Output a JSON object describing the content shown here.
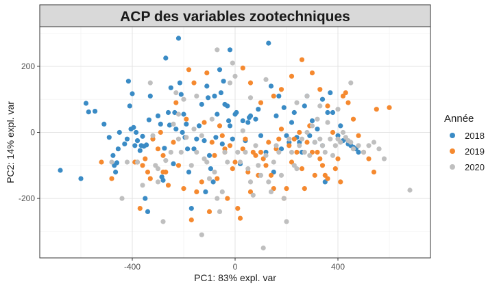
{
  "chart_data": {
    "type": "scatter",
    "title": "ACP des variables zootechniques",
    "xlabel": "PC1: 83% expl. var",
    "ylabel": "PC2: 14% expl. var",
    "xlim": [
      -760,
      760
    ],
    "ylim": [
      -380,
      320
    ],
    "xticks": [
      -400,
      0,
      400
    ],
    "yticks": [
      -200,
      0,
      200
    ],
    "grid": true,
    "legend": {
      "title": "Année",
      "position": "right"
    },
    "series": [
      {
        "name": "2018",
        "color": "#3A8BC5",
        "points": [
          [
            -680,
            -115
          ],
          [
            -600,
            -140
          ],
          [
            -580,
            88
          ],
          [
            -570,
            62
          ],
          [
            -545,
            64
          ],
          [
            -510,
            25
          ],
          [
            -490,
            -15
          ],
          [
            -475,
            -70
          ],
          [
            -470,
            -100
          ],
          [
            -465,
            -120
          ],
          [
            -460,
            -92
          ],
          [
            -455,
            -50
          ],
          [
            -450,
            0
          ],
          [
            -430,
            -35
          ],
          [
            -420,
            -20
          ],
          [
            -415,
            155
          ],
          [
            -410,
            80
          ],
          [
            -405,
            10
          ],
          [
            -400,
            117
          ],
          [
            -395,
            15
          ],
          [
            -390,
            -40
          ],
          [
            -385,
            0
          ],
          [
            -380,
            -25
          ],
          [
            -370,
            -55
          ],
          [
            -365,
            -40
          ],
          [
            -360,
            -12
          ],
          [
            -355,
            -42
          ],
          [
            -350,
            -200
          ],
          [
            -345,
            -38
          ],
          [
            -340,
            -240
          ],
          [
            -335,
            38
          ],
          [
            -330,
            110
          ],
          [
            -320,
            -20
          ],
          [
            -300,
            50
          ],
          [
            -290,
            25
          ],
          [
            -285,
            -135
          ],
          [
            -280,
            -145
          ],
          [
            -275,
            -48
          ],
          [
            -270,
            225
          ],
          [
            -260,
            60
          ],
          [
            -255,
            22
          ],
          [
            -250,
            135
          ],
          [
            -240,
            -95
          ],
          [
            -235,
            60
          ],
          [
            -230,
            10
          ],
          [
            -220,
            285
          ],
          [
            -215,
            150
          ],
          [
            -210,
            115
          ],
          [
            -205,
            0
          ],
          [
            -200,
            55
          ],
          [
            -195,
            -15
          ],
          [
            -190,
            25
          ],
          [
            -185,
            -50
          ],
          [
            -180,
            -120
          ],
          [
            -170,
            -230
          ],
          [
            -160,
            -50
          ],
          [
            -150,
            -20
          ],
          [
            -140,
            20
          ],
          [
            -130,
            85
          ],
          [
            -120,
            -25
          ],
          [
            -115,
            -180
          ],
          [
            -110,
            140
          ],
          [
            -105,
            105
          ],
          [
            -100,
            -70
          ],
          [
            -95,
            -110
          ],
          [
            -85,
            -150
          ],
          [
            -80,
            110
          ],
          [
            -75,
            -15
          ],
          [
            -70,
            55
          ],
          [
            -60,
            190
          ],
          [
            -55,
            120
          ],
          [
            -50,
            -35
          ],
          [
            -45,
            155
          ],
          [
            -40,
            85
          ],
          [
            -30,
            80
          ],
          [
            -25,
            35
          ],
          [
            -20,
            250
          ],
          [
            -10,
            -20
          ],
          [
            0,
            55
          ],
          [
            5,
            60
          ],
          [
            20,
            -95
          ],
          [
            30,
            35
          ],
          [
            40,
            -25
          ],
          [
            50,
            30
          ],
          [
            55,
            45
          ],
          [
            60,
            50
          ],
          [
            80,
            40
          ],
          [
            90,
            70
          ],
          [
            100,
            -10
          ],
          [
            120,
            -60
          ],
          [
            130,
            270
          ],
          [
            140,
            140
          ],
          [
            150,
            -120
          ],
          [
            160,
            50
          ],
          [
            170,
            110
          ],
          [
            180,
            -50
          ],
          [
            190,
            75
          ],
          [
            200,
            -10
          ],
          [
            210,
            -30
          ],
          [
            220,
            30
          ],
          [
            230,
            60
          ],
          [
            240,
            -15
          ],
          [
            250,
            -30
          ],
          [
            260,
            -60
          ],
          [
            270,
            80
          ],
          [
            280,
            110
          ],
          [
            290,
            -10
          ],
          [
            300,
            35
          ],
          [
            310,
            -30
          ],
          [
            320,
            10
          ],
          [
            340,
            -40
          ],
          [
            350,
            -150
          ],
          [
            360,
            60
          ],
          [
            380,
            60
          ],
          [
            400,
            -10
          ],
          [
            410,
            20
          ],
          [
            420,
            -25
          ],
          [
            430,
            -20
          ],
          [
            440,
            -35
          ],
          [
            450,
            -40
          ],
          [
            460,
            -45
          ],
          [
            470,
            -50
          ],
          [
            480,
            -60
          ],
          [
            370,
            120
          ],
          [
            340,
            100
          ],
          [
            -20,
            20
          ]
        ]
      },
      {
        "name": "2019",
        "color": "#F5892F",
        "points": [
          [
            -520,
            -90
          ],
          [
            -480,
            -140
          ],
          [
            -390,
            -90
          ],
          [
            -380,
            -90
          ],
          [
            -370,
            -230
          ],
          [
            -360,
            -100
          ],
          [
            -350,
            -80
          ],
          [
            -340,
            -120
          ],
          [
            -330,
            -140
          ],
          [
            -320,
            -20
          ],
          [
            -300,
            -50
          ],
          [
            -290,
            0
          ],
          [
            -280,
            -120
          ],
          [
            -270,
            -120
          ],
          [
            -260,
            -160
          ],
          [
            -240,
            -30
          ],
          [
            -220,
            -100
          ],
          [
            -200,
            -170
          ],
          [
            -190,
            40
          ],
          [
            -180,
            190
          ],
          [
            -170,
            -265
          ],
          [
            -160,
            150
          ],
          [
            -150,
            -180
          ],
          [
            -130,
            -150
          ],
          [
            -120,
            30
          ],
          [
            -110,
            180
          ],
          [
            -100,
            -240
          ],
          [
            -90,
            -30
          ],
          [
            -80,
            -70
          ],
          [
            -70,
            -140
          ],
          [
            -60,
            20
          ],
          [
            -50,
            -10
          ],
          [
            -40,
            -60
          ],
          [
            -30,
            -200
          ],
          [
            -20,
            -40
          ],
          [
            -10,
            -110
          ],
          [
            0,
            -90
          ],
          [
            10,
            -230
          ],
          [
            20,
            -260
          ],
          [
            30,
            -50
          ],
          [
            40,
            -20
          ],
          [
            50,
            -120
          ],
          [
            60,
            -180
          ],
          [
            70,
            -60
          ],
          [
            80,
            -70
          ],
          [
            90,
            -130
          ],
          [
            100,
            -60
          ],
          [
            110,
            -80
          ],
          [
            120,
            -100
          ],
          [
            130,
            -30
          ],
          [
            140,
            -130
          ],
          [
            150,
            -170
          ],
          [
            160,
            -50
          ],
          [
            170,
            -20
          ],
          [
            180,
            10
          ],
          [
            190,
            -200
          ],
          [
            200,
            -170
          ],
          [
            210,
            -40
          ],
          [
            220,
            -90
          ],
          [
            230,
            -20
          ],
          [
            240,
            -60
          ],
          [
            250,
            0
          ],
          [
            260,
            -110
          ],
          [
            270,
            -170
          ],
          [
            280,
            -30
          ],
          [
            290,
            20
          ],
          [
            300,
            -60
          ],
          [
            310,
            -130
          ],
          [
            320,
            -60
          ],
          [
            330,
            -80
          ],
          [
            340,
            -100
          ],
          [
            350,
            -130
          ],
          [
            360,
            -140
          ],
          [
            380,
            0
          ],
          [
            390,
            -110
          ],
          [
            400,
            -80
          ],
          [
            410,
            -150
          ],
          [
            420,
            110
          ],
          [
            430,
            120
          ],
          [
            440,
            90
          ],
          [
            460,
            40
          ],
          [
            480,
            -10
          ],
          [
            500,
            -60
          ],
          [
            520,
            -80
          ],
          [
            540,
            -120
          ],
          [
            550,
            70
          ],
          [
            600,
            75
          ],
          [
            360,
            80
          ],
          [
            330,
            130
          ],
          [
            300,
            180
          ],
          [
            260,
            220
          ],
          [
            220,
            170
          ],
          [
            180,
            130
          ],
          [
            150,
            110
          ],
          [
            100,
            90
          ],
          [
            60,
            150
          ],
          [
            30,
            195
          ],
          [
            -230,
            90
          ],
          [
            -280,
            -70
          ],
          [
            -40,
            -50
          ]
        ]
      },
      {
        "name": "2020",
        "color": "#BFBFBF",
        "points": [
          [
            -480,
            -90
          ],
          [
            -440,
            -200
          ],
          [
            -420,
            -90
          ],
          [
            -380,
            -90
          ],
          [
            -360,
            -160
          ],
          [
            -330,
            150
          ],
          [
            -310,
            -100
          ],
          [
            -300,
            -110
          ],
          [
            -280,
            -270
          ],
          [
            -270,
            -85
          ],
          [
            -250,
            -60
          ],
          [
            -240,
            25
          ],
          [
            -230,
            120
          ],
          [
            -220,
            -20
          ],
          [
            -210,
            -60
          ],
          [
            -200,
            100
          ],
          [
            -190,
            -15
          ],
          [
            -170,
            -100
          ],
          [
            -160,
            10
          ],
          [
            -150,
            -60
          ],
          [
            -130,
            -10
          ],
          [
            -120,
            -80
          ],
          [
            -110,
            -90
          ],
          [
            -100,
            -140
          ],
          [
            -90,
            40
          ],
          [
            -80,
            -120
          ],
          [
            -70,
            -200
          ],
          [
            -60,
            -240
          ],
          [
            -50,
            -180
          ],
          [
            -40,
            -60
          ],
          [
            -30,
            -90
          ],
          [
            -20,
            150
          ],
          [
            -10,
            210
          ],
          [
            10,
            -60
          ],
          [
            20,
            -90
          ],
          [
            30,
            5
          ],
          [
            40,
            -60
          ],
          [
            50,
            -110
          ],
          [
            60,
            -150
          ],
          [
            70,
            -190
          ],
          [
            80,
            -40
          ],
          [
            90,
            -100
          ],
          [
            100,
            -130
          ],
          [
            110,
            -350
          ],
          [
            120,
            -70
          ],
          [
            130,
            -150
          ],
          [
            140,
            -180
          ],
          [
            150,
            -90
          ],
          [
            160,
            -40
          ],
          [
            170,
            -60
          ],
          [
            180,
            -130
          ],
          [
            190,
            -200
          ],
          [
            200,
            -270
          ],
          [
            210,
            -20
          ],
          [
            220,
            -60
          ],
          [
            230,
            -100
          ],
          [
            240,
            -110
          ],
          [
            250,
            -40
          ],
          [
            260,
            -20
          ],
          [
            270,
            -60
          ],
          [
            280,
            0
          ],
          [
            290,
            -70
          ],
          [
            300,
            20
          ],
          [
            310,
            -30
          ],
          [
            320,
            40
          ],
          [
            330,
            -20
          ],
          [
            340,
            -40
          ],
          [
            350,
            -60
          ],
          [
            360,
            30
          ],
          [
            370,
            -20
          ],
          [
            380,
            -70
          ],
          [
            390,
            -40
          ],
          [
            400,
            -20
          ],
          [
            410,
            -30
          ],
          [
            420,
            0
          ],
          [
            430,
            -15
          ],
          [
            440,
            -25
          ],
          [
            450,
            -30
          ],
          [
            460,
            -50
          ],
          [
            480,
            -40
          ],
          [
            500,
            -60
          ],
          [
            520,
            -40
          ],
          [
            540,
            -30
          ],
          [
            560,
            -50
          ],
          [
            580,
            -80
          ],
          [
            680,
            -175
          ],
          [
            -320,
            -10
          ],
          [
            -220,
            55
          ],
          [
            -150,
            110
          ],
          [
            -70,
            250
          ],
          [
            0,
            170
          ],
          [
            60,
            105
          ],
          [
            120,
            160
          ],
          [
            240,
            90
          ],
          [
            280,
            110
          ],
          [
            330,
            80
          ],
          [
            400,
            70
          ],
          [
            450,
            150
          ],
          [
            -300,
            -150
          ],
          [
            -130,
            -310
          ]
        ]
      }
    ]
  }
}
